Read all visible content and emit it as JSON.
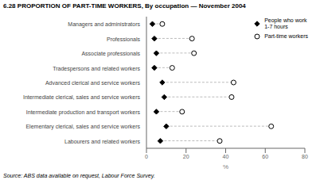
{
  "chart_data": {
    "type": "dot",
    "title": "6.28   PROPORTION OF PART-TIME WORKERS, By occupation — November 2004",
    "annotations": [
      "Source: ABS data available on request, Labour Force Survey."
    ],
    "xlabel": "%",
    "xlim": [
      0,
      80
    ],
    "xticks": [
      0,
      20,
      40,
      60,
      80
    ],
    "categories": [
      "Managers and administrators",
      "Professionals",
      "Associate professionals",
      "Tradespersons and related workers",
      "Advanced clerical and service workers",
      "Intermediate clerical, sales and service workers",
      "Intermediate production and transport workers",
      "Elementary clerical, sales and service workers",
      "Labourers and related workers"
    ],
    "series": [
      {
        "name": "People who work\n1-7 hours",
        "color": "#000000",
        "marker": "diamond",
        "values": [
          3,
          4,
          5,
          4,
          8,
          9,
          5,
          10,
          7
        ]
      },
      {
        "name": "Part-time workers",
        "color": "#000000",
        "marker": "circle_open",
        "values": [
          8,
          23,
          24,
          13,
          44,
          43,
          18,
          63,
          37
        ]
      }
    ],
    "legend": "upper right",
    "grid": false
  }
}
